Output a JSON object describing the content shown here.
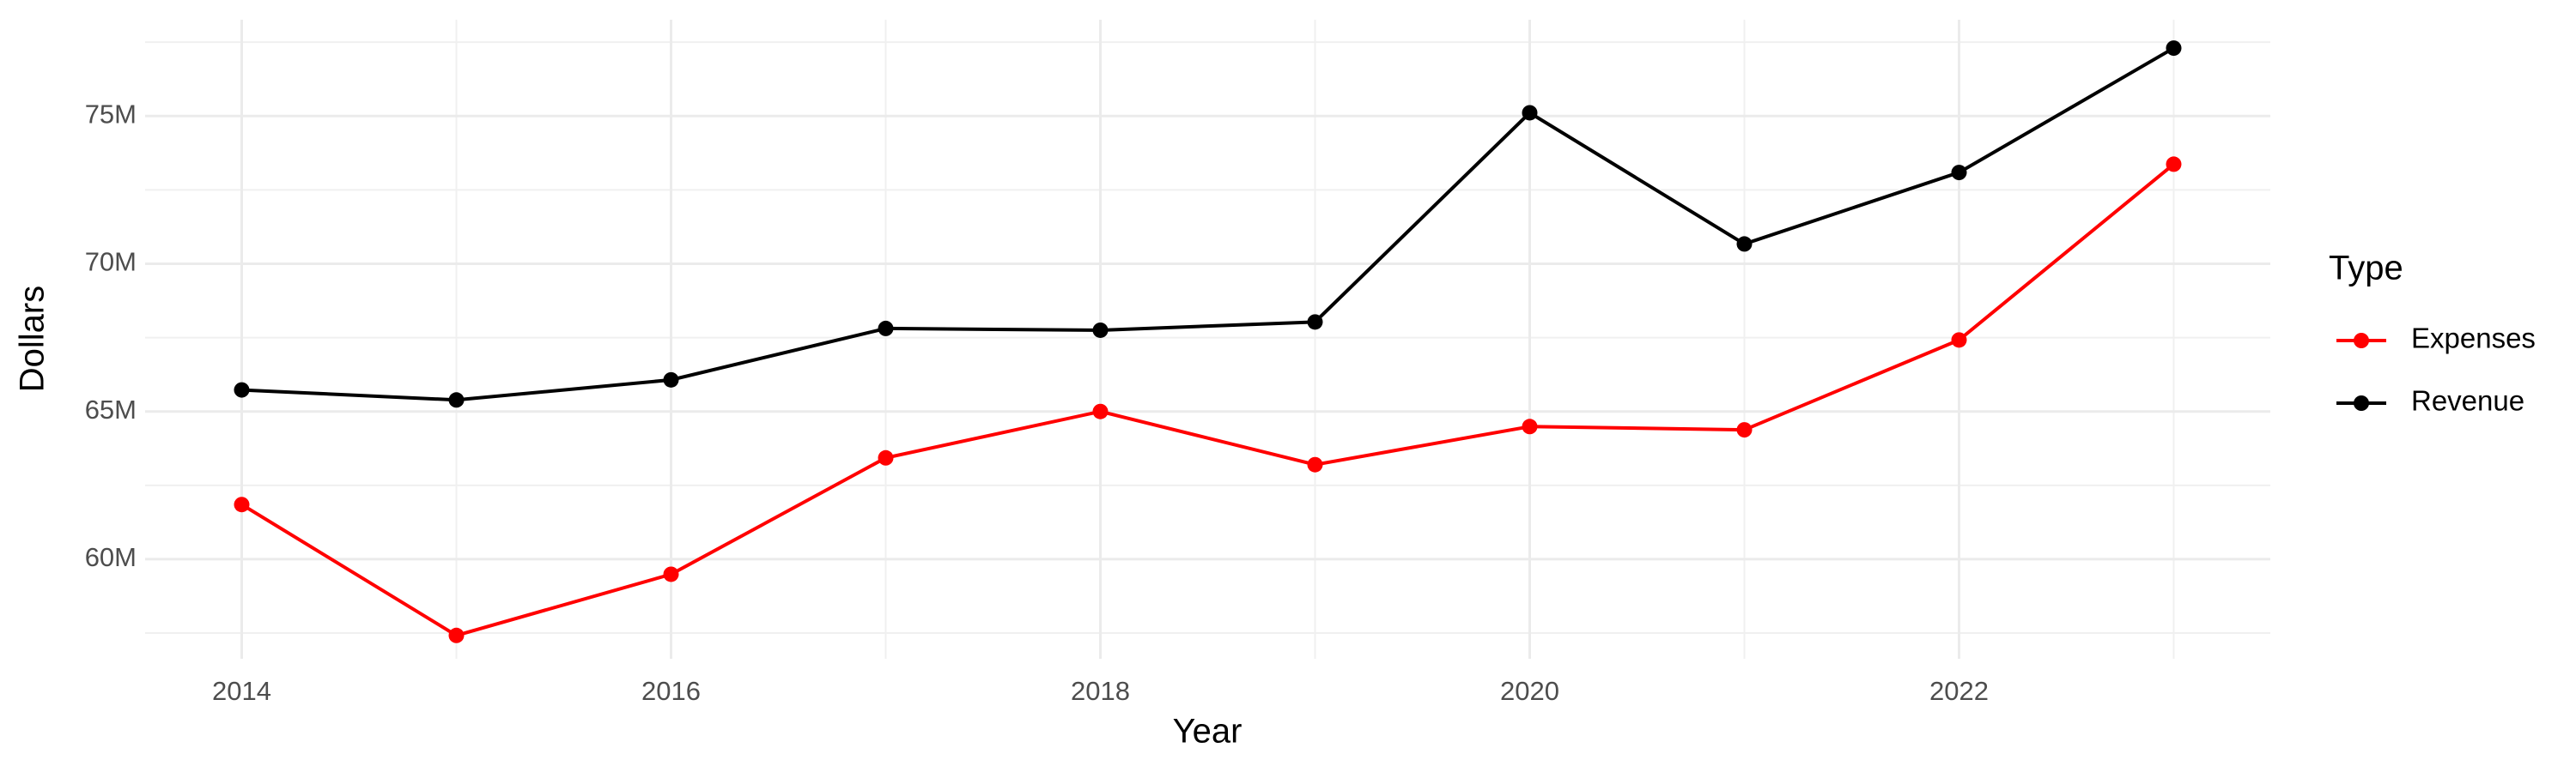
{
  "chart_data": {
    "type": "line",
    "x_label": "Year",
    "y_label": "Dollars",
    "x": [
      2014,
      2015,
      2016,
      2017,
      2018,
      2019,
      2020,
      2021,
      2022,
      2023
    ],
    "series": [
      {
        "name": "Expenses",
        "color": "#ff0000",
        "values": [
          61850000,
          57420000,
          59490000,
          63430000,
          65000000,
          63200000,
          64490000,
          64380000,
          67420000,
          73370000
        ]
      },
      {
        "name": "Revenue",
        "color": "#000000",
        "values": [
          65730000,
          65390000,
          66070000,
          67810000,
          67750000,
          68030000,
          75110000,
          70670000,
          73090000,
          77300000
        ]
      }
    ],
    "xlim": [
      2013.55,
      2023.45
    ],
    "xticks": [
      2014,
      2016,
      2018,
      2020,
      2022
    ],
    "ylim": [
      56630000,
      78260000
    ],
    "yticks": [
      {
        "value": 60000000,
        "label": "60M"
      },
      {
        "value": 65000000,
        "label": "65M"
      },
      {
        "value": 70000000,
        "label": "70M"
      },
      {
        "value": 75000000,
        "label": "75M"
      }
    ],
    "grid": true,
    "legend_title": "Type",
    "legend_position": "right"
  }
}
